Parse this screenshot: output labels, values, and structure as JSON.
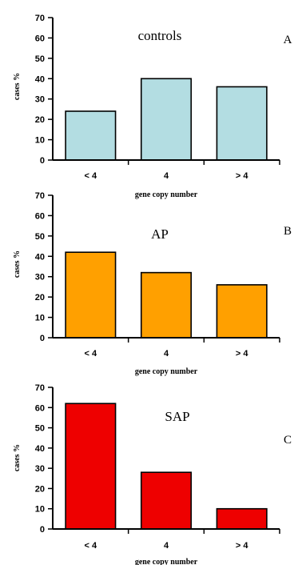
{
  "chart_data": [
    {
      "type": "bar",
      "panel_letter": "A",
      "title": "controls",
      "xlabel": "gene copy number",
      "ylabel": "cases %",
      "categories": [
        "< 4",
        "4",
        "> 4"
      ],
      "values": [
        24,
        40,
        36
      ],
      "ylim": [
        0,
        70
      ],
      "yticks": [
        0,
        10,
        20,
        30,
        40,
        50,
        60,
        70
      ],
      "bar_color": "#b3dde2",
      "grid": false,
      "legend": "none"
    },
    {
      "type": "bar",
      "panel_letter": "B",
      "title": "AP",
      "xlabel": "gene copy number",
      "ylabel": "cases %",
      "categories": [
        "< 4",
        "4",
        "> 4"
      ],
      "values": [
        42,
        32,
        26
      ],
      "ylim": [
        0,
        70
      ],
      "yticks": [
        0,
        10,
        20,
        30,
        40,
        50,
        60,
        70
      ],
      "bar_color": "#ffa000",
      "grid": false,
      "legend": "none"
    },
    {
      "type": "bar",
      "panel_letter": "C",
      "title": "SAP",
      "xlabel": "gene copy number",
      "ylabel": "cases %",
      "categories": [
        "< 4",
        "4",
        "> 4"
      ],
      "values": [
        62,
        28,
        10
      ],
      "ylim": [
        0,
        70
      ],
      "yticks": [
        0,
        10,
        20,
        30,
        40,
        50,
        60,
        70
      ],
      "bar_color": "#ee0000",
      "grid": false,
      "legend": "none"
    }
  ]
}
